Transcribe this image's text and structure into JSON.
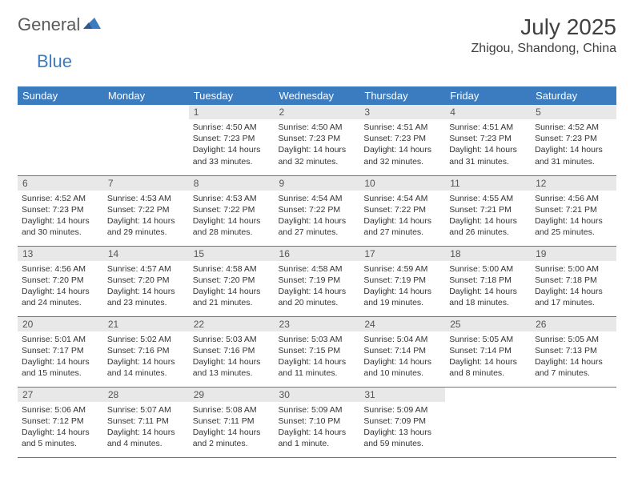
{
  "logo": {
    "part1": "General",
    "part2": "Blue"
  },
  "title": "July 2025",
  "location": "Zhigou, Shandong, China",
  "colors": {
    "header_bg": "#3b7bbf",
    "header_text": "#ffffff",
    "daynum_bg": "#e8e8e8",
    "border": "#5a7a9a",
    "logo_gray": "#5a5a5a",
    "logo_blue": "#3b7bbf"
  },
  "weekdays": [
    "Sunday",
    "Monday",
    "Tuesday",
    "Wednesday",
    "Thursday",
    "Friday",
    "Saturday"
  ],
  "weeks": [
    [
      null,
      null,
      {
        "n": "1",
        "sunrise": "4:50 AM",
        "sunset": "7:23 PM",
        "daylight": "14 hours and 33 minutes."
      },
      {
        "n": "2",
        "sunrise": "4:50 AM",
        "sunset": "7:23 PM",
        "daylight": "14 hours and 32 minutes."
      },
      {
        "n": "3",
        "sunrise": "4:51 AM",
        "sunset": "7:23 PM",
        "daylight": "14 hours and 32 minutes."
      },
      {
        "n": "4",
        "sunrise": "4:51 AM",
        "sunset": "7:23 PM",
        "daylight": "14 hours and 31 minutes."
      },
      {
        "n": "5",
        "sunrise": "4:52 AM",
        "sunset": "7:23 PM",
        "daylight": "14 hours and 31 minutes."
      }
    ],
    [
      {
        "n": "6",
        "sunrise": "4:52 AM",
        "sunset": "7:23 PM",
        "daylight": "14 hours and 30 minutes."
      },
      {
        "n": "7",
        "sunrise": "4:53 AM",
        "sunset": "7:22 PM",
        "daylight": "14 hours and 29 minutes."
      },
      {
        "n": "8",
        "sunrise": "4:53 AM",
        "sunset": "7:22 PM",
        "daylight": "14 hours and 28 minutes."
      },
      {
        "n": "9",
        "sunrise": "4:54 AM",
        "sunset": "7:22 PM",
        "daylight": "14 hours and 27 minutes."
      },
      {
        "n": "10",
        "sunrise": "4:54 AM",
        "sunset": "7:22 PM",
        "daylight": "14 hours and 27 minutes."
      },
      {
        "n": "11",
        "sunrise": "4:55 AM",
        "sunset": "7:21 PM",
        "daylight": "14 hours and 26 minutes."
      },
      {
        "n": "12",
        "sunrise": "4:56 AM",
        "sunset": "7:21 PM",
        "daylight": "14 hours and 25 minutes."
      }
    ],
    [
      {
        "n": "13",
        "sunrise": "4:56 AM",
        "sunset": "7:20 PM",
        "daylight": "14 hours and 24 minutes."
      },
      {
        "n": "14",
        "sunrise": "4:57 AM",
        "sunset": "7:20 PM",
        "daylight": "14 hours and 23 minutes."
      },
      {
        "n": "15",
        "sunrise": "4:58 AM",
        "sunset": "7:20 PM",
        "daylight": "14 hours and 21 minutes."
      },
      {
        "n": "16",
        "sunrise": "4:58 AM",
        "sunset": "7:19 PM",
        "daylight": "14 hours and 20 minutes."
      },
      {
        "n": "17",
        "sunrise": "4:59 AM",
        "sunset": "7:19 PM",
        "daylight": "14 hours and 19 minutes."
      },
      {
        "n": "18",
        "sunrise": "5:00 AM",
        "sunset": "7:18 PM",
        "daylight": "14 hours and 18 minutes."
      },
      {
        "n": "19",
        "sunrise": "5:00 AM",
        "sunset": "7:18 PM",
        "daylight": "14 hours and 17 minutes."
      }
    ],
    [
      {
        "n": "20",
        "sunrise": "5:01 AM",
        "sunset": "7:17 PM",
        "daylight": "14 hours and 15 minutes."
      },
      {
        "n": "21",
        "sunrise": "5:02 AM",
        "sunset": "7:16 PM",
        "daylight": "14 hours and 14 minutes."
      },
      {
        "n": "22",
        "sunrise": "5:03 AM",
        "sunset": "7:16 PM",
        "daylight": "14 hours and 13 minutes."
      },
      {
        "n": "23",
        "sunrise": "5:03 AM",
        "sunset": "7:15 PM",
        "daylight": "14 hours and 11 minutes."
      },
      {
        "n": "24",
        "sunrise": "5:04 AM",
        "sunset": "7:14 PM",
        "daylight": "14 hours and 10 minutes."
      },
      {
        "n": "25",
        "sunrise": "5:05 AM",
        "sunset": "7:14 PM",
        "daylight": "14 hours and 8 minutes."
      },
      {
        "n": "26",
        "sunrise": "5:05 AM",
        "sunset": "7:13 PM",
        "daylight": "14 hours and 7 minutes."
      }
    ],
    [
      {
        "n": "27",
        "sunrise": "5:06 AM",
        "sunset": "7:12 PM",
        "daylight": "14 hours and 5 minutes."
      },
      {
        "n": "28",
        "sunrise": "5:07 AM",
        "sunset": "7:11 PM",
        "daylight": "14 hours and 4 minutes."
      },
      {
        "n": "29",
        "sunrise": "5:08 AM",
        "sunset": "7:11 PM",
        "daylight": "14 hours and 2 minutes."
      },
      {
        "n": "30",
        "sunrise": "5:09 AM",
        "sunset": "7:10 PM",
        "daylight": "14 hours and 1 minute."
      },
      {
        "n": "31",
        "sunrise": "5:09 AM",
        "sunset": "7:09 PM",
        "daylight": "13 hours and 59 minutes."
      },
      null,
      null
    ]
  ],
  "labels": {
    "sunrise": "Sunrise:",
    "sunset": "Sunset:",
    "daylight": "Daylight:"
  }
}
